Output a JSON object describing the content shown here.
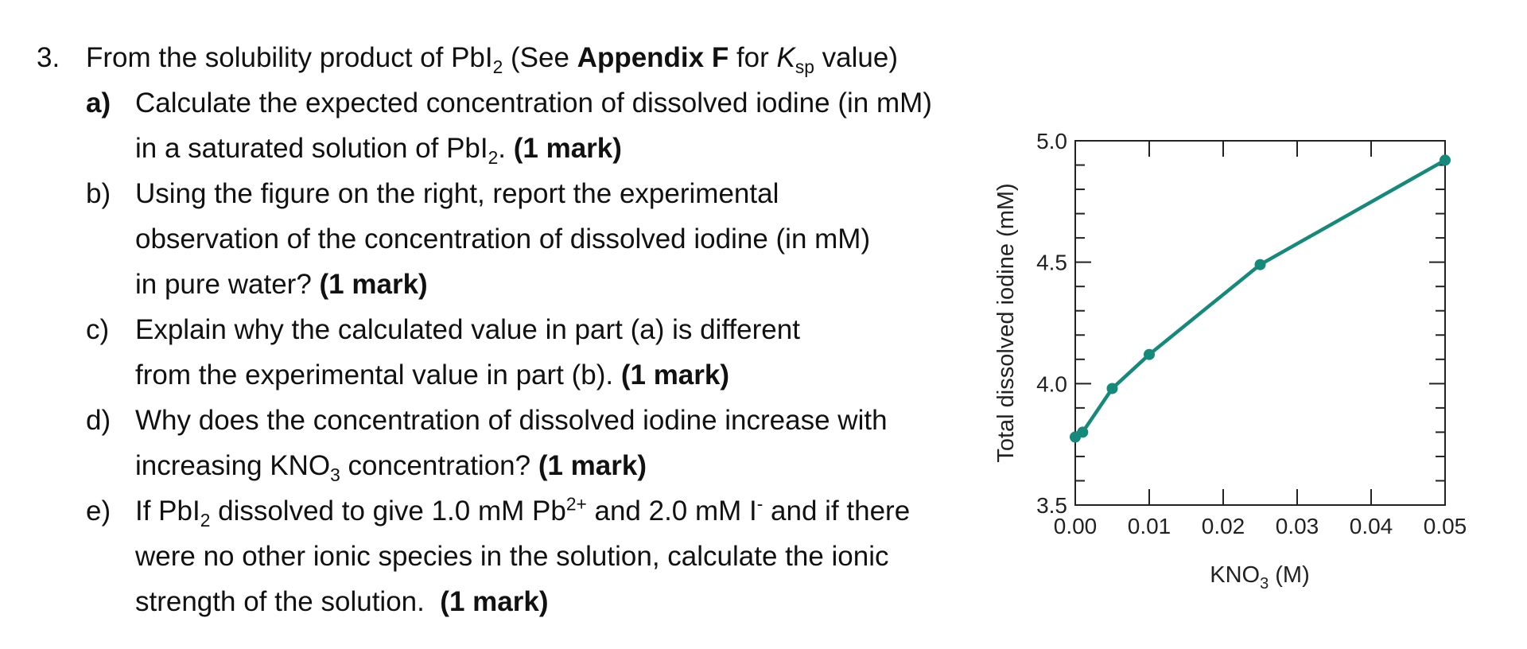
{
  "question": {
    "number": "3.",
    "intro": {
      "text1": "From the solubility product of PbI",
      "sub1": "2",
      "text2": " (See ",
      "bold": "Appendix F",
      "text3": " for ",
      "k": "K",
      "ksub": "sp",
      "text4": " value)"
    },
    "parts": [
      {
        "label": "a)",
        "l1": "Calculate the expected concentration of dissolved iodine (in mM)",
        "l2a": "in a saturated solution of PbI",
        "l2sub": "2",
        "l2b": ".",
        "mark": "(1 mark)"
      },
      {
        "label": "b)",
        "l1": "Using the figure on the right, report the experimental",
        "l2": "observation of the concentration of dissolved iodine (in mM)",
        "l3": "in pure water?",
        "mark": "(1 mark)"
      },
      {
        "label": "c)",
        "l1": "Explain why the calculated value in part (a) is different",
        "l2": "from the experimental value in part (b).",
        "mark": "(1 mark)"
      },
      {
        "label": "d)",
        "l1": "Why does the concentration of dissolved iodine increase with",
        "l2a": "increasing KNO",
        "l2sub": "3",
        "l2b": " concentration?",
        "mark": "(1 mark)"
      },
      {
        "label": "e)",
        "l1a": "If PbI",
        "l1sub": "2",
        "l1b": " dissolved to give 1.0 mM Pb",
        "l1sup": "2+",
        "l1c": " and 2.0 mM I",
        "l1sup2": "-",
        "l1d": " and if there",
        "l2": "were no other ionic species in the solution, calculate the ionic",
        "l3": "strength of the solution.",
        "mark": "(1 mark)"
      }
    ]
  },
  "chart_data": {
    "type": "line",
    "x": [
      0.0,
      0.001,
      0.005,
      0.01,
      0.025,
      0.05
    ],
    "series": [
      {
        "values": [
          3.78,
          3.8,
          3.98,
          4.12,
          4.49,
          4.92
        ]
      }
    ],
    "xlabel": "KNO",
    "xlabel_sub": "3",
    "xlabel_unit": " (M)",
    "ylabel": "Total dissolved iodine (mM)",
    "xlim": [
      0,
      0.05
    ],
    "ylim": [
      3.5,
      5.0
    ],
    "xticks": [
      "0.00",
      "0.01",
      "0.02",
      "0.03",
      "0.04",
      "0.05"
    ],
    "yticks": [
      "3.5",
      "4.0",
      "4.5",
      "5.0"
    ],
    "grid": false,
    "line_color": "#15897a"
  }
}
